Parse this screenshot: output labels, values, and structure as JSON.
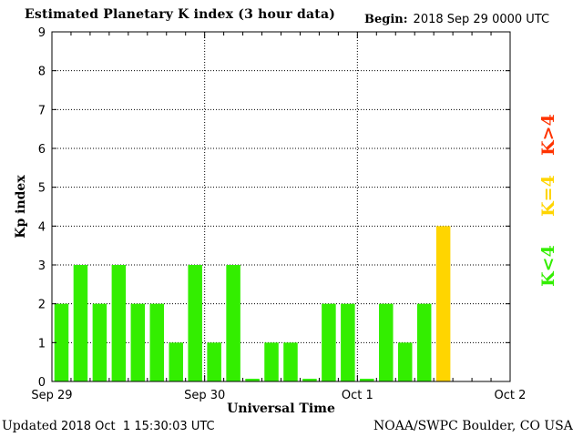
{
  "header": {
    "title": "Estimated Planetary K index (3 hour data)",
    "begin_label": "Begin:",
    "begin_value": "2018 Sep 29 0000 UTC"
  },
  "footer": {
    "updated_label": "Updated",
    "updated_value": "2018 Oct  1 15:30:03 UTC",
    "credit": "NOAA/SWPC Boulder, CO USA"
  },
  "legend": [
    {
      "label": "K<4",
      "color": "#33ee00"
    },
    {
      "label": "K=4",
      "color": "#ffd500"
    },
    {
      "label": "K>4",
      "color": "#ff3300"
    }
  ],
  "colors": {
    "below4": "#33ee00",
    "equal4": "#ffd500",
    "above4": "#ff3300",
    "grid": "#000000"
  },
  "chart_data": {
    "type": "bar",
    "title": "Estimated Planetary K index (3 hour data)",
    "xlabel": "Universal Time",
    "ylabel": "Kp index",
    "ylim": [
      0,
      9
    ],
    "yticks": [
      0,
      1,
      2,
      3,
      4,
      5,
      6,
      7,
      8,
      9
    ],
    "xticks": [
      "Sep 29",
      "Sep 30",
      "Oct 1",
      "Oct 2"
    ],
    "interval_hours": 3,
    "bars_per_day": 8,
    "days": 3,
    "values": [
      2,
      3,
      2,
      3,
      2,
      2,
      1,
      3,
      1,
      3,
      0.07,
      1,
      1,
      0.07,
      2,
      2,
      0.07,
      2,
      1,
      2,
      4
    ],
    "grid": true
  }
}
